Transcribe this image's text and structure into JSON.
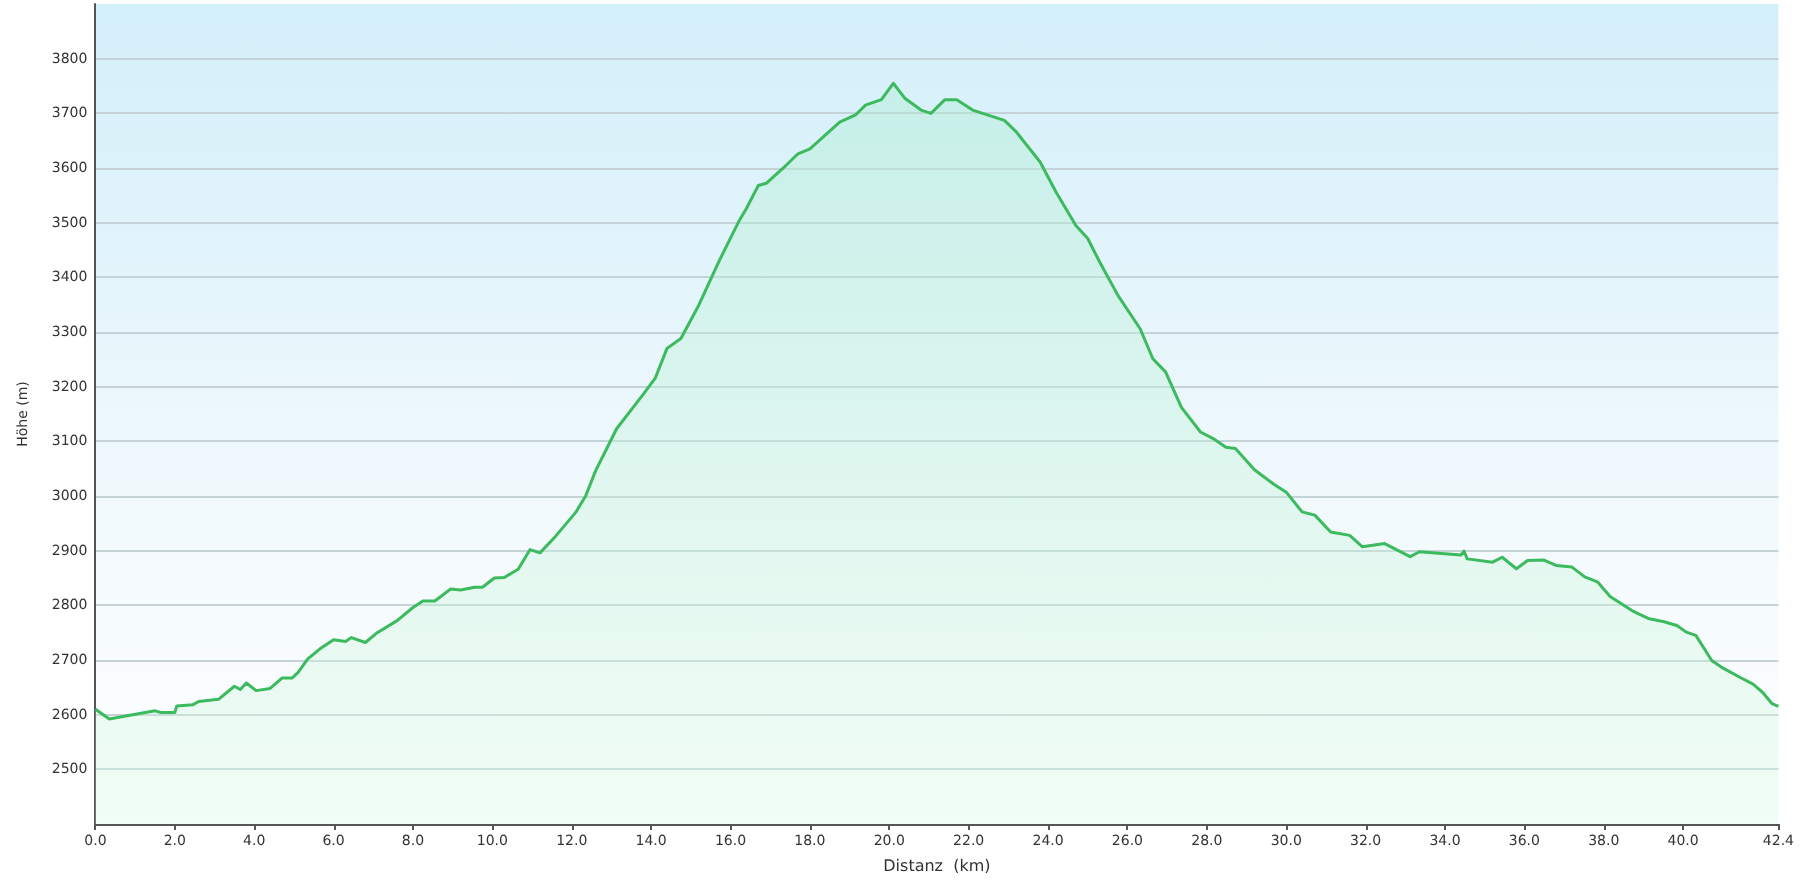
{
  "chart_data": {
    "type": "area",
    "xlabel": "Distanz  (km)",
    "ylabel": "Höhe (m)",
    "x": [
      0,
      0.35,
      0.8,
      1.5,
      1.65,
      2.0,
      2.05,
      2.45,
      2.6,
      3.1,
      3.5,
      3.65,
      3.8,
      4.05,
      4.4,
      4.7,
      4.95,
      5.1,
      5.35,
      5.65,
      6.0,
      6.3,
      6.45,
      6.8,
      7.1,
      7.6,
      8.0,
      8.25,
      8.55,
      8.95,
      9.2,
      9.55,
      9.75,
      10.05,
      10.3,
      10.65,
      10.95,
      11.2,
      11.6,
      12.1,
      12.35,
      12.6,
      13.13,
      13.78,
      14.1,
      14.4,
      14.75,
      15.2,
      15.7,
      16.2,
      16.4,
      16.7,
      16.9,
      17.4,
      17.7,
      18.0,
      18.75,
      19.15,
      19.4,
      19.8,
      20.1,
      20.4,
      20.8,
      21.05,
      21.4,
      21.7,
      22.1,
      22.9,
      23.2,
      23.8,
      24.2,
      24.7,
      25.0,
      25.3,
      25.76,
      26.32,
      26.64,
      26.96,
      27.36,
      27.84,
      28.16,
      28.48,
      28.72,
      29.2,
      29.68,
      30.0,
      30.4,
      30.72,
      31.12,
      31.6,
      31.92,
      32.48,
      33.12,
      33.36,
      34.4,
      34.48,
      34.56,
      35.2,
      35.44,
      35.8,
      36.08,
      36.48,
      36.8,
      37.2,
      37.52,
      37.84,
      38.16,
      38.72,
      39.12,
      39.52,
      39.84,
      40.08,
      40.32,
      40.72,
      40.96,
      41.44,
      41.76,
      42.0,
      42.24,
      42.4
    ],
    "series": [
      {
        "color": "#3cba5e",
        "values": [
          2610,
          2592,
          2598,
          2607,
          2604,
          2604,
          2616,
          2618,
          2624,
          2628,
          2652,
          2646,
          2658,
          2644,
          2648,
          2667,
          2667,
          2677,
          2702,
          2720,
          2737,
          2734,
          2741,
          2732,
          2750,
          2772,
          2796,
          2808,
          2808,
          2830,
          2828,
          2833,
          2833,
          2850,
          2851,
          2866,
          2902,
          2896,
          2927,
          2970,
          3000,
          3046,
          3123,
          3184,
          3215,
          3270,
          3288,
          3349,
          3428,
          3501,
          3526,
          3568,
          3572,
          3605,
          3626,
          3635,
          3684,
          3697,
          3715,
          3725,
          3755,
          3727,
          3706,
          3700,
          3725,
          3725,
          3706,
          3687,
          3666,
          3611,
          3556,
          3495,
          3471,
          3428,
          3367,
          3306,
          3251,
          3227,
          3162,
          3117,
          3105,
          3089,
          3087,
          3048,
          3022,
          3007,
          2971,
          2965,
          2934,
          2928,
          2907,
          2913,
          2889,
          2898,
          2892,
          2899,
          2885,
          2879,
          2888,
          2867,
          2882,
          2883,
          2873,
          2870,
          2852,
          2843,
          2816,
          2790,
          2776,
          2770,
          2763,
          2751,
          2745,
          2699,
          2687,
          2668,
          2656,
          2641,
          2620,
          2615
        ]
      }
    ],
    "xlim": [
      0,
      42.4
    ],
    "xticks": [
      {
        "value": 0,
        "label": "0.0"
      },
      {
        "value": 2,
        "label": "2.0"
      },
      {
        "value": 4,
        "label": "4.0"
      },
      {
        "value": 6,
        "label": "6.0"
      },
      {
        "value": 8,
        "label": "8.0"
      },
      {
        "value": 10,
        "label": "10.0"
      },
      {
        "value": 12,
        "label": "12.0"
      },
      {
        "value": 14,
        "label": "14.0"
      },
      {
        "value": 16,
        "label": "16.0"
      },
      {
        "value": 18,
        "label": "18.0"
      },
      {
        "value": 20,
        "label": "20.0"
      },
      {
        "value": 22,
        "label": "22.0"
      },
      {
        "value": 24,
        "label": "24.0"
      },
      {
        "value": 26,
        "label": "26.0"
      },
      {
        "value": 28,
        "label": "28.0"
      },
      {
        "value": 30,
        "label": "30.0"
      },
      {
        "value": 32,
        "label": "32.0"
      },
      {
        "value": 34,
        "label": "34.0"
      },
      {
        "value": 36,
        "label": "36.0"
      },
      {
        "value": 38,
        "label": "38.0"
      },
      {
        "value": 40,
        "label": "40.0"
      },
      {
        "value": 42.4,
        "label": "42.4"
      }
    ],
    "ylim": [
      2400,
      3900
    ],
    "yticks": [
      2500,
      2600,
      2700,
      2800,
      2900,
      3000,
      3100,
      3200,
      3300,
      3400,
      3500,
      3600,
      3700,
      3800
    ],
    "grid": "y",
    "marker": "none",
    "line_style": "solid"
  }
}
